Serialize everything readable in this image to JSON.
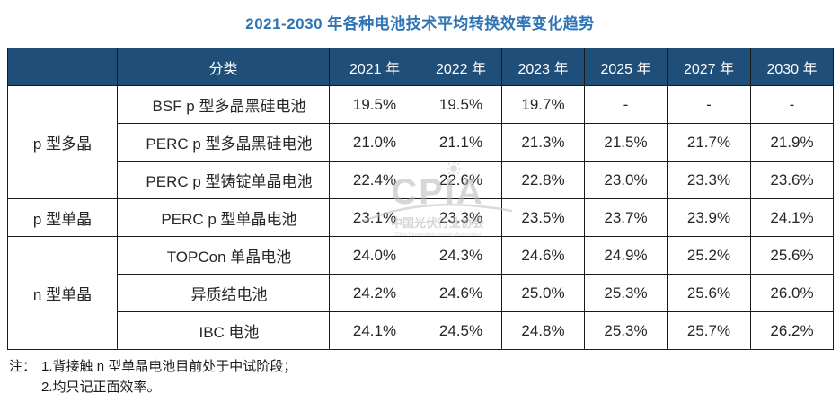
{
  "title": "2021-2030 年各种电池技术平均转换效率变化趋势",
  "colors": {
    "title_blue": "#2E74B5",
    "header_navy": "#1F4E79",
    "header_text": "#ffffff",
    "body_text": "#262626",
    "border": "#1a1a1a",
    "watermark_gray": "#9aa0a6"
  },
  "table": {
    "headers": [
      "",
      "分类",
      "2021 年",
      "2022 年",
      "2023 年",
      "2025 年",
      "2027 年",
      "2030 年"
    ],
    "groups": [
      {
        "name": "p 型多晶",
        "rows": [
          {
            "category": "BSF p 型多晶黑硅电池",
            "values": [
              "19.5%",
              "19.5%",
              "19.7%",
              "-",
              "-",
              "-"
            ]
          },
          {
            "category": "PERC p 型多晶黑硅电池",
            "values": [
              "21.0%",
              "21.1%",
              "21.3%",
              "21.5%",
              "21.7%",
              "21.9%"
            ]
          },
          {
            "category": "PERC p 型铸锭单晶电池",
            "values": [
              "22.4%",
              "22.6%",
              "22.8%",
              "23.0%",
              "23.3%",
              "23.6%"
            ]
          }
        ]
      },
      {
        "name": "p 型单晶",
        "rows": [
          {
            "category": "PERC p 型单晶电池",
            "values": [
              "23.1%",
              "23.3%",
              "23.5%",
              "23.7%",
              "23.9%",
              "24.1%"
            ]
          }
        ]
      },
      {
        "name": "n 型单晶",
        "rows": [
          {
            "category": "TOPCon 单晶电池",
            "values": [
              "24.0%",
              "24.3%",
              "24.6%",
              "24.9%",
              "25.2%",
              "25.6%"
            ]
          },
          {
            "category": "异质结电池",
            "values": [
              "24.2%",
              "24.6%",
              "25.0%",
              "25.3%",
              "25.6%",
              "26.0%"
            ]
          },
          {
            "category": "IBC 电池",
            "values": [
              "24.1%",
              "24.5%",
              "24.8%",
              "25.3%",
              "25.7%",
              "26.2%"
            ]
          }
        ]
      }
    ]
  },
  "notes": {
    "prefix": "注：",
    "lines": [
      "1.背接触 n 型单晶电池目前处于中试阶段；",
      "2.均只记正面效率。"
    ]
  },
  "watermark": {
    "logo_text": "CPIA",
    "cn_name": "中国光伏行业协会",
    "en_name": "China Photovoltaic Industry Association"
  }
}
